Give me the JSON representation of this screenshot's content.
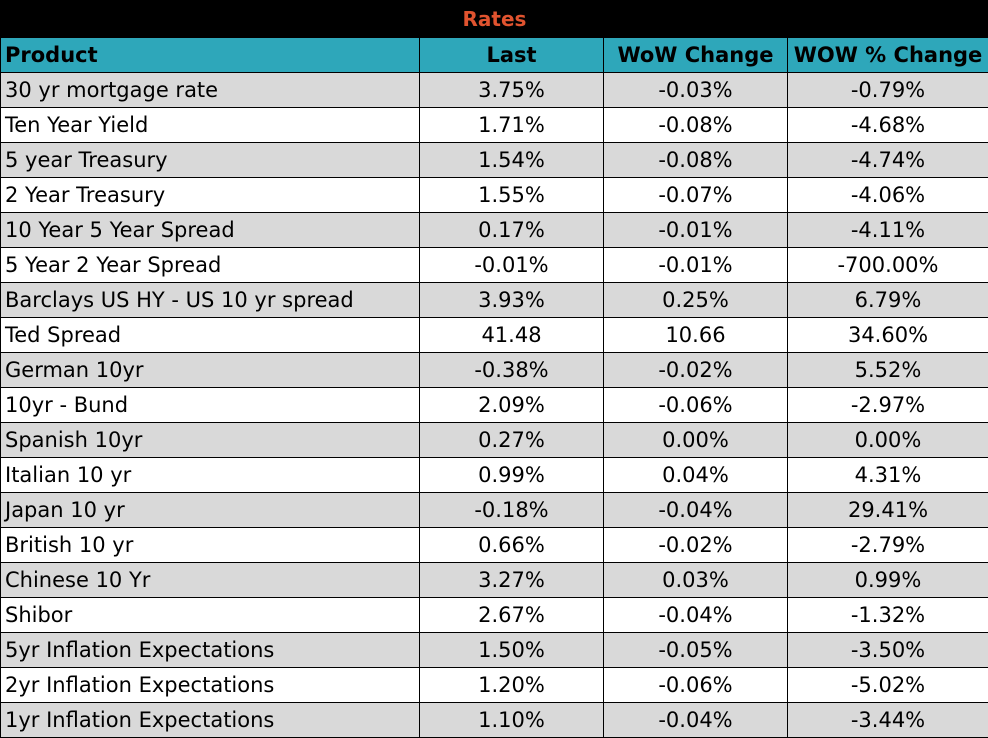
{
  "title": "Rates",
  "columns": [
    "Product",
    "Last",
    "WoW Change",
    "WOW % Change"
  ],
  "rows": [
    [
      "30 yr mortgage rate",
      "3.75%",
      "-0.03%",
      "-0.79%"
    ],
    [
      "Ten Year Yield",
      "1.71%",
      "-0.08%",
      "-4.68%"
    ],
    [
      "5 year Treasury",
      "1.54%",
      "-0.08%",
      "-4.74%"
    ],
    [
      "2 Year Treasury",
      "1.55%",
      "-0.07%",
      "-4.06%"
    ],
    [
      "10 Year 5 Year Spread",
      "0.17%",
      "-0.01%",
      "-4.11%"
    ],
    [
      "5 Year 2 Year Spread",
      "-0.01%",
      "-0.01%",
      "-700.00%"
    ],
    [
      "Barclays US HY - US 10 yr spread",
      "3.93%",
      "0.25%",
      "6.79%"
    ],
    [
      "Ted Spread",
      "41.48",
      "10.66",
      "34.60%"
    ],
    [
      "German 10yr",
      "-0.38%",
      "-0.02%",
      "5.52%"
    ],
    [
      "10yr - Bund",
      "2.09%",
      "-0.06%",
      "-2.97%"
    ],
    [
      "Spanish 10yr",
      "0.27%",
      "0.00%",
      "0.00%"
    ],
    [
      "Italian 10 yr",
      "0.99%",
      "0.04%",
      "4.31%"
    ],
    [
      "Japan 10 yr",
      "-0.18%",
      "-0.04%",
      "29.41%"
    ],
    [
      "British 10 yr",
      "0.66%",
      "-0.02%",
      "-2.79%"
    ],
    [
      "Chinese 10 Yr",
      "3.27%",
      "0.03%",
      "0.99%"
    ],
    [
      "Shibor",
      "2.67%",
      "-0.04%",
      "-1.32%"
    ],
    [
      "5yr Inflation Expectations",
      "1.50%",
      "-0.05%",
      "-3.50%"
    ],
    [
      "2yr Inflation Expectations",
      "1.20%",
      "-0.06%",
      "-5.02%"
    ],
    [
      "1yr Inflation Expectations",
      "1.10%",
      "-0.04%",
      "-3.44%"
    ]
  ],
  "colors": {
    "title_background": "#000000",
    "title_text": "#e0532f",
    "header_background": "#2ea7ba",
    "row_shade": "#d9d9d9",
    "row_plain": "#ffffff"
  }
}
